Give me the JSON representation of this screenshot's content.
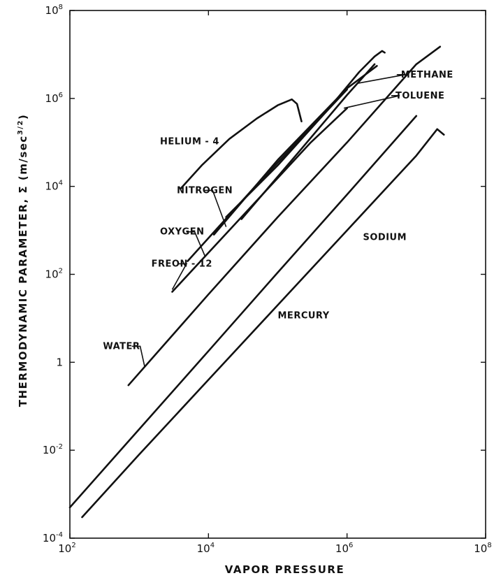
{
  "chart_data": {
    "type": "line",
    "title": "",
    "xlabel": "VAPOR PRESSURE",
    "ylabel": "THERMODYNAMIC PARAMETER, Σ (m/sec",
    "ylabel_sup": "3/2",
    "ylabel_close": ")",
    "xscale": "log",
    "yscale": "log",
    "xlim": [
      100,
      100000000
    ],
    "ylim": [
      0.0001,
      100000000
    ],
    "grid": false,
    "x_ticks": [
      {
        "value": 100,
        "base": "10",
        "exp": "2"
      },
      {
        "value": 10000,
        "base": "10",
        "exp": "4"
      },
      {
        "value": 1000000,
        "base": "10",
        "exp": "6"
      },
      {
        "value": 100000000,
        "base": "10",
        "exp": "8"
      }
    ],
    "y_ticks": [
      {
        "value": 0.0001,
        "base": "10",
        "exp": "-4"
      },
      {
        "value": 0.01,
        "base": "10",
        "exp": "-2"
      },
      {
        "value": 1,
        "base": "1",
        "exp": ""
      },
      {
        "value": 100,
        "base": "10",
        "exp": "2"
      },
      {
        "value": 10000,
        "base": "10",
        "exp": "4"
      },
      {
        "value": 1000000,
        "base": "10",
        "exp": "6"
      },
      {
        "value": 100000000,
        "base": "10",
        "exp": "8"
      }
    ],
    "series": [
      {
        "name": "HELIUM-4",
        "label": "HELIUM - 4",
        "x": [
          4000,
          8000,
          20000,
          50000,
          100000,
          160000,
          190000,
          220000
        ],
        "y": [
          9000,
          30000,
          120000,
          350000,
          700000,
          950000,
          750000,
          300000
        ]
      },
      {
        "name": "METHANE",
        "label": "METHANE",
        "x": [
          18000,
          100000,
          500000,
          1500000,
          2500000,
          3200000,
          3500000
        ],
        "y": [
          2000,
          30000,
          500000,
          4000000,
          9000000,
          12000000,
          11000000
        ]
      },
      {
        "name": "TOLUENE",
        "label": "TOLUENE",
        "x": [
          30000,
          200000,
          1000000,
          2500000
        ],
        "y": [
          1800,
          60000,
          1200000,
          6000000
        ]
      },
      {
        "name": "NITROGEN",
        "label": "NITROGEN",
        "x": [
          12000,
          100000,
          1000000,
          2700000
        ],
        "y": [
          800,
          40000,
          1700000,
          5500000
        ]
      },
      {
        "name": "OXYGEN",
        "label": "OXYGEN",
        "x": [
          5000,
          50000,
          500000,
          1000000
        ],
        "y": [
          200,
          11000,
          500000,
          1600000
        ]
      },
      {
        "name": "FREON-12",
        "label": "FREON - 12",
        "x": [
          3000,
          30000,
          300000,
          1000000
        ],
        "y": [
          40,
          2000,
          100000,
          600000
        ]
      },
      {
        "name": "WATER",
        "label": "WATER",
        "x": [
          700,
          10000,
          100000,
          1000000,
          10000000,
          22000000
        ],
        "y": [
          0.3,
          35,
          2000,
          100000,
          6000000,
          15000000
        ]
      },
      {
        "name": "SODIUM",
        "label": "SODIUM",
        "x": [
          100,
          1000,
          10000,
          100000,
          1000000,
          10000000
        ],
        "y": [
          0.0005,
          0.03,
          1.8,
          110,
          6500,
          400000
        ]
      },
      {
        "name": "MERCURY",
        "label": "MERCURY",
        "x": [
          150,
          1000,
          10000,
          100000,
          1000000,
          10000000,
          20000000,
          25000000
        ],
        "y": [
          0.0003,
          0.008,
          0.4,
          20,
          1000,
          50000,
          200000,
          150000
        ]
      }
    ],
    "labels": [
      {
        "text": "METHANE",
        "x": 6000000,
        "y": 3000000
      },
      {
        "text": "TOLUENE",
        "x": 5000000,
        "y": 1000000
      },
      {
        "text": "HELIUM - 4",
        "x": 2000,
        "y": 90000
      },
      {
        "text": "NITROGEN",
        "x": 3500,
        "y": 7000
      },
      {
        "text": "OXYGEN",
        "x": 2000,
        "y": 800
      },
      {
        "text": "FREON - 12",
        "x": 1500,
        "y": 150
      },
      {
        "text": "SODIUM",
        "x": 1700000,
        "y": 600
      },
      {
        "text": "WATER",
        "x": 300,
        "y": 2
      },
      {
        "text": "MERCURY",
        "x": 100000,
        "y": 10
      }
    ]
  }
}
